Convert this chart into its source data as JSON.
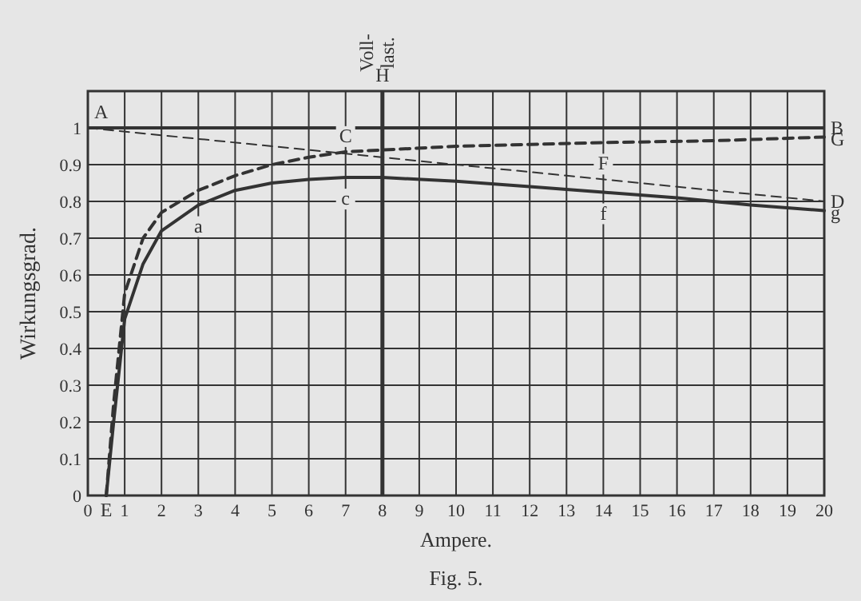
{
  "chart_data": {
    "type": "line",
    "title": "Fig. 5.",
    "xlabel": "Ampere.",
    "ylabel": "Wirkungsgrad.",
    "xlim": [
      0,
      20
    ],
    "xticks": [
      0,
      1,
      2,
      3,
      4,
      5,
      6,
      7,
      8,
      9,
      10,
      11,
      12,
      13,
      14,
      15,
      16,
      17,
      18,
      19,
      20
    ],
    "ylim": [
      0,
      1.1
    ],
    "yticks": [
      0,
      0.1,
      0.2,
      0.3,
      0.4,
      0.5,
      0.6,
      0.7,
      0.8,
      0.9,
      1.0,
      {
        "value": 1.1,
        "label": null
      }
    ],
    "grid": true,
    "series": [
      {
        "color": "#333333",
        "line_style": "dashed",
        "x": [
          0,
          20
        ],
        "values": [
          1.0,
          0.8
        ]
      },
      {
        "color": "#333333",
        "line_style": "dashed",
        "x": [
          0.5,
          0.7,
          1,
          1.5,
          2,
          3,
          4,
          5,
          6,
          7,
          8,
          10,
          12,
          14,
          17,
          20
        ],
        "values": [
          0,
          0.25,
          0.55,
          0.7,
          0.77,
          0.83,
          0.87,
          0.9,
          0.92,
          0.935,
          0.94,
          0.95,
          0.955,
          0.96,
          0.965,
          0.975
        ]
      },
      {
        "color": "#333333",
        "line_style": "solid",
        "x": [
          0.5,
          0.7,
          1,
          1.5,
          2,
          3,
          4,
          5,
          6,
          7,
          8,
          10,
          12,
          14,
          16,
          18,
          20
        ],
        "values": [
          0,
          0.2,
          0.48,
          0.63,
          0.72,
          0.79,
          0.83,
          0.85,
          0.86,
          0.865,
          0.865,
          0.855,
          0.84,
          0.825,
          0.81,
          0.79,
          0.775
        ]
      }
    ],
    "ref_lines": [
      {
        "axis": "y",
        "value": 1.0,
        "color": "#333333"
      },
      {
        "axis": "x",
        "value": 8,
        "label": "Voll- last.",
        "color": "#333333"
      }
    ],
    "annotations": [
      {
        "text": "A",
        "x": 0,
        "y": 1.0
      },
      {
        "text": "B",
        "x": 20,
        "y": 1.0
      },
      {
        "text": "G",
        "x": 20,
        "y": 0.97
      },
      {
        "text": "D",
        "x": 20,
        "y": 0.8
      },
      {
        "text": "g",
        "x": 20,
        "y": 0.77
      },
      {
        "text": "C",
        "x": 7,
        "y": 0.935
      },
      {
        "text": "c",
        "x": 7,
        "y": 0.865
      },
      {
        "text": "a",
        "x": 3,
        "y": 0.79
      },
      {
        "text": "F",
        "x": 14,
        "y": 0.96
      },
      {
        "text": "f",
        "x": 14,
        "y": 0.825
      },
      {
        "text": "E",
        "x": 0.5,
        "y": 0
      },
      {
        "text": "H",
        "x": 8,
        "y": 1.1
      }
    ]
  }
}
